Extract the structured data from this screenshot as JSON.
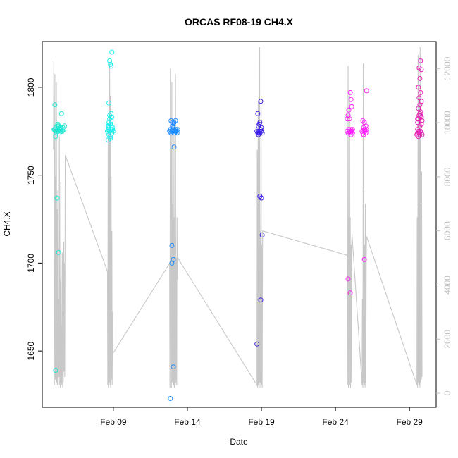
{
  "chart_data": {
    "type": "scatter",
    "title": "ORCAS RF08-19 CH4.X",
    "xlabel": "Date",
    "ylabel": "CH4.X",
    "x_unit": "days in Feb 2016",
    "xlim": [
      4.2,
      30.8
    ],
    "ylim": [
      1618,
      1826
    ],
    "y2lim": [
      -520,
      13000
    ],
    "x_ticks": [
      {
        "value": 9,
        "label": "Feb 09"
      },
      {
        "value": 14,
        "label": "Feb 14"
      },
      {
        "value": 19,
        "label": "Feb 19"
      },
      {
        "value": 24,
        "label": "Feb 24"
      },
      {
        "value": 29,
        "label": "Feb 29"
      }
    ],
    "y_ticks": [
      1650,
      1700,
      1750,
      1800
    ],
    "y2_ticks": [
      0,
      2000,
      4000,
      6000,
      8000,
      10000,
      12000
    ],
    "colors": {
      "altitude_line": "#c8c8c8",
      "RF08": "#1ee6d2",
      "RF09": "#1ef0f0",
      "RF10": "#1e8cff",
      "RF11": "#3a1ee6",
      "RF12": "#ff1eff",
      "RF13": "#e61eb4"
    },
    "series": [
      {
        "color_key": "RF08",
        "x": [
          5.0,
          5.05,
          5.1,
          5.15,
          5.2,
          5.25,
          5.3,
          5.35,
          5.4,
          5.45,
          5.5,
          5.55,
          5.6,
          5.65,
          5.7,
          5.05,
          5.1,
          5.2,
          5.3,
          5.5,
          5.15,
          5.25,
          5.35,
          5.45,
          5.1,
          5.3,
          5.5
        ],
        "y": [
          1776,
          1776,
          1777,
          1775,
          1776,
          1778,
          1775,
          1774,
          1776,
          1777,
          1776,
          1775,
          1777,
          1776,
          1778,
          1790,
          1772,
          1737,
          1706,
          1785,
          1774,
          1779,
          1776,
          1775,
          1639,
          1778,
          1776
        ]
      },
      {
        "color_key": "RF09",
        "x": [
          8.6,
          8.65,
          8.7,
          8.75,
          8.8,
          8.85,
          8.9,
          8.95,
          9.0,
          8.7,
          8.75,
          8.8,
          8.85,
          8.9,
          8.7,
          8.8,
          8.9,
          8.65,
          8.75,
          8.85,
          8.95,
          8.7,
          8.8,
          8.9,
          8.75,
          8.85,
          8.65,
          8.8,
          8.9,
          8.7
        ],
        "y": [
          1775,
          1776,
          1777,
          1775,
          1776,
          1778,
          1774,
          1776,
          1775,
          1780,
          1782,
          1779,
          1781,
          1783,
          1773,
          1771,
          1774,
          1778,
          1784,
          1785,
          1777,
          1791,
          1813,
          1820,
          1815,
          1812,
          1770,
          1772,
          1776,
          1778
        ]
      },
      {
        "color_key": "RF10",
        "x": [
          12.8,
          12.85,
          12.9,
          12.95,
          13.0,
          13.05,
          13.1,
          13.15,
          13.2,
          13.25,
          13.3,
          13.35,
          12.9,
          13.0,
          13.1,
          13.2,
          13.0,
          13.1,
          12.95,
          13.05,
          12.85,
          12.95,
          13.05,
          13.15,
          13.25,
          13.1,
          13.2
        ],
        "y": [
          1775,
          1776,
          1774,
          1775,
          1776,
          1777,
          1774,
          1775,
          1776,
          1775,
          1774,
          1776,
          1781,
          1780,
          1780,
          1781,
          1778,
          1766,
          1710,
          1702,
          1623,
          1700,
          1641,
          1774,
          1776,
          1775,
          1775
        ]
      },
      {
        "color_key": "RF11",
        "x": [
          18.7,
          18.75,
          18.8,
          18.85,
          18.9,
          18.95,
          19.0,
          19.05,
          18.8,
          18.9,
          19.0,
          18.75,
          18.85,
          18.95,
          18.7,
          18.8,
          18.9,
          19.0,
          19.05,
          18.85,
          18.95
        ],
        "y": [
          1775,
          1774,
          1773,
          1775,
          1774,
          1776,
          1775,
          1774,
          1778,
          1780,
          1777,
          1785,
          1779,
          1792,
          1654,
          1774,
          1738,
          1737,
          1716,
          1774,
          1679
        ]
      },
      {
        "color_key": "RF12",
        "x": [
          24.8,
          24.85,
          24.9,
          24.95,
          25.0,
          25.05,
          25.1,
          25.15,
          24.85,
          24.95,
          25.0,
          25.05,
          25.1,
          24.9,
          24.8,
          24.85,
          25.0,
          25.1,
          25.05,
          25.15
        ],
        "y": [
          1775,
          1774,
          1776,
          1775,
          1774,
          1773,
          1775,
          1776,
          1784,
          1782,
          1797,
          1793,
          1789,
          1787,
          1782,
          1691,
          1683,
          1775,
          1776,
          1774
        ]
      },
      {
        "color_key": "RF12",
        "x": [
          25.8,
          25.85,
          25.9,
          25.95,
          26.0,
          26.05,
          26.1,
          25.85,
          25.95,
          26.05,
          25.9,
          26.0,
          26.1,
          25.95,
          25.85
        ],
        "y": [
          1775,
          1774,
          1773,
          1776,
          1775,
          1774,
          1776,
          1781,
          1780,
          1778,
          1777,
          1776,
          1798,
          1702,
          1774
        ]
      },
      {
        "color_key": "RF13",
        "x": [
          29.5,
          29.55,
          29.6,
          29.65,
          29.7,
          29.75,
          29.8,
          29.85,
          29.55,
          29.6,
          29.65,
          29.7,
          29.75,
          29.8,
          29.6,
          29.7,
          29.8,
          29.65,
          29.75,
          29.55,
          29.85,
          29.6,
          29.7,
          29.8,
          29.75,
          29.65,
          29.55,
          29.7,
          29.8,
          29.6,
          29.75
        ],
        "y": [
          1773,
          1774,
          1775,
          1774,
          1773,
          1775,
          1774,
          1773,
          1780,
          1782,
          1784,
          1785,
          1786,
          1783,
          1788,
          1790,
          1792,
          1794,
          1797,
          1782,
          1781,
          1800,
          1805,
          1810,
          1815,
          1811,
          1776,
          1778,
          1779,
          1772,
          1784
        ]
      }
    ],
    "altitude_line": {
      "x": [
        4.95,
        4.98,
        5.02,
        5.05,
        5.08,
        5.1,
        5.13,
        5.15,
        5.18,
        5.2,
        5.22,
        5.25,
        5.28,
        5.3,
        5.33,
        5.35,
        5.38,
        5.4,
        5.42,
        5.45,
        5.48,
        5.5,
        5.52,
        5.55,
        5.58,
        5.6,
        5.62,
        5.65,
        5.67,
        5.7,
        5.72,
        5.75,
        8.6,
        8.62,
        8.65,
        8.67,
        8.7,
        8.72,
        8.75,
        8.78,
        8.8,
        8.82,
        8.85,
        8.88,
        8.9,
        8.92,
        8.95,
        8.98,
        9.0,
        12.8,
        12.82,
        12.85,
        12.88,
        12.9,
        12.92,
        12.95,
        12.98,
        13.0,
        13.03,
        13.05,
        13.08,
        13.1,
        13.12,
        13.15,
        13.18,
        13.2,
        13.22,
        13.25,
        13.28,
        13.3,
        13.32,
        13.35,
        18.7,
        18.72,
        18.75,
        18.78,
        18.8,
        18.82,
        18.85,
        18.88,
        18.9,
        18.92,
        18.95,
        18.98,
        19.0,
        19.02,
        19.05,
        19.08,
        24.8,
        24.82,
        24.85,
        24.88,
        24.9,
        24.92,
        24.95,
        24.98,
        25.0,
        25.02,
        25.05,
        25.08,
        25.1,
        25.12,
        25.15,
        25.8,
        25.82,
        25.85,
        25.88,
        25.9,
        25.92,
        25.95,
        25.98,
        26.0,
        26.02,
        26.05,
        26.08,
        26.1,
        29.5,
        29.52,
        29.55,
        29.58,
        29.6,
        29.62,
        29.65,
        29.68,
        29.7,
        29.72,
        29.75,
        29.78,
        29.8,
        29.82,
        29.85
      ],
      "y": [
        9000,
        12300,
        300,
        11800,
        500,
        8000,
        200,
        11500,
        400,
        6800,
        300,
        7500,
        200,
        3500,
        600,
        9500,
        300,
        4200,
        200,
        7800,
        400,
        2500,
        300,
        5200,
        200,
        3000,
        400,
        5600,
        800,
        4800,
        600,
        8800,
        4500,
        300,
        9800,
        200,
        10500,
        400,
        12200,
        300,
        11000,
        200,
        8000,
        500,
        6000,
        300,
        3000,
        1500,
        1500,
        4800,
        200,
        12000,
        300,
        9000,
        200,
        11500,
        400,
        7000,
        200,
        10000,
        300,
        6500,
        200,
        9500,
        300,
        11800,
        400,
        5000,
        300,
        6500,
        4200,
        5000,
        300,
        9000,
        200,
        10800,
        300,
        7000,
        200,
        12800,
        400,
        6000,
        200,
        11000,
        300,
        5500,
        200,
        6000,
        5100,
        300,
        12100,
        200,
        6500,
        400,
        11200,
        300,
        6500,
        200,
        5500,
        400,
        5600,
        5900,
        5600,
        300,
        3500,
        200,
        12200,
        400,
        7500,
        300,
        5500,
        200,
        7000,
        400,
        5000,
        5800,
        300,
        6500,
        200,
        12500,
        400,
        10000,
        300,
        11000,
        200,
        12800,
        400,
        7000,
        500,
        8200,
        600
      ]
    }
  }
}
